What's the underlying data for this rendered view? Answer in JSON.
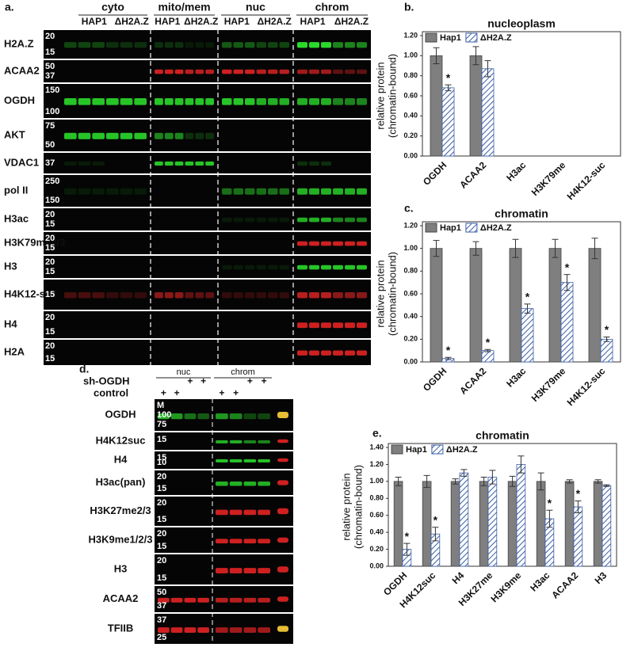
{
  "panel_a": {
    "label": "a.",
    "groups": [
      "cyto",
      "mito/mem",
      "nuc",
      "chrom"
    ],
    "lanes": [
      "HAP1",
      "ΔH2A.Z"
    ],
    "rows": [
      {
        "name": "H2A.Z",
        "markers": [
          "20",
          "15"
        ]
      },
      {
        "name": "ACAA2",
        "markers": [
          "50",
          "37"
        ]
      },
      {
        "name": "OGDH",
        "markers": [
          "150",
          "100"
        ]
      },
      {
        "name": "AKT",
        "markers": [
          "75",
          "50"
        ]
      },
      {
        "name": "VDAC1",
        "markers": [
          "37"
        ]
      },
      {
        "name": "pol II",
        "markers": [
          "250",
          "150"
        ]
      },
      {
        "name": "H3ac",
        "markers": [
          "20",
          "15"
        ]
      },
      {
        "name": "H3K79me2/3",
        "markers": [
          "20",
          "15"
        ]
      },
      {
        "name": "H3",
        "markers": [
          "20",
          "15"
        ]
      },
      {
        "name": "H4K12-suc",
        "markers": [
          "15"
        ]
      },
      {
        "name": "H4",
        "markers": [
          "20",
          "15"
        ]
      },
      {
        "name": "H2A",
        "markers": [
          "20",
          "15"
        ]
      }
    ]
  },
  "panel_d": {
    "label": "d.",
    "groups": [
      "nuc",
      "chrom"
    ],
    "conditions": [
      {
        "name": "sh-OGDH",
        "marks": [
          null,
          null,
          "+",
          "+"
        ]
      },
      {
        "name": "control",
        "marks": [
          "+",
          "+",
          null,
          null
        ]
      }
    ],
    "rows": [
      {
        "name": "OGDH",
        "markers": [
          "M",
          "100",
          "75"
        ]
      },
      {
        "name": "H4K12suc",
        "markers": [
          "15"
        ]
      },
      {
        "name": "H4",
        "markers": [
          "15",
          "10"
        ]
      },
      {
        "name": "H3ac(pan)",
        "markers": [
          "20",
          "15"
        ]
      },
      {
        "name": "H3K27me2/3",
        "markers": [
          "20",
          "15"
        ]
      },
      {
        "name": "H3K9me1/2/3",
        "markers": [
          "20",
          "15"
        ]
      },
      {
        "name": "H3",
        "markers": [
          "20",
          "15"
        ]
      },
      {
        "name": "ACAA2",
        "markers": [
          "50",
          "37"
        ]
      },
      {
        "name": "TFIIB",
        "markers": [
          "37",
          "25"
        ]
      }
    ]
  },
  "chart_data": [
    {
      "type": "bar",
      "panel_label": "b.",
      "title": "nucleoplasm",
      "y_label": [
        "relative protein",
        "(chromatin-bound)"
      ],
      "categories": [
        "OGDH",
        "ACAA2",
        "H3ac",
        "H3K79me",
        "H4K12-suc"
      ],
      "series": [
        {
          "name": "Hap1",
          "color": "#7f7f7f",
          "hatch": false,
          "values": [
            1.0,
            1.0,
            null,
            null,
            null
          ],
          "errors": [
            0.08,
            0.09,
            null,
            null,
            null
          ],
          "significance": [
            null,
            null,
            null,
            null,
            null
          ]
        },
        {
          "name": "ΔH2A.Z",
          "color": "#3a5ea8",
          "hatch": true,
          "values": [
            0.68,
            0.87,
            null,
            null,
            null
          ],
          "errors": [
            0.03,
            0.08,
            null,
            null,
            null
          ],
          "significance": [
            "*",
            null,
            null,
            null,
            null
          ]
        }
      ],
      "ylim": [
        0,
        1.2
      ],
      "yticks": [
        {
          "value": 0,
          "label": "0.00"
        },
        {
          "value": 0.2,
          "label": "0.20"
        },
        {
          "value": 0.4,
          "label": "0.40"
        },
        {
          "value": 0.6,
          "label": "0.60"
        },
        {
          "value": 0.8,
          "label": "0.80"
        },
        {
          "value": 1.0,
          "label": "1.00"
        },
        {
          "value": 1.2,
          "label": "1.20"
        }
      ],
      "grid": false,
      "legend": "top-left"
    },
    {
      "type": "bar",
      "panel_label": "c.",
      "title": "chromatin",
      "y_label": [
        "relative protein",
        "(chromatin-bound)"
      ],
      "categories": [
        "OGDH",
        "ACAA2",
        "H3ac",
        "H3K79me",
        "H4K12-suc"
      ],
      "series": [
        {
          "name": "Hap1",
          "color": "#7f7f7f",
          "hatch": false,
          "values": [
            1.0,
            1.0,
            1.0,
            1.0,
            1.0
          ],
          "errors": [
            0.07,
            0.06,
            0.08,
            0.08,
            0.09
          ],
          "significance": [
            null,
            null,
            null,
            null,
            null
          ]
        },
        {
          "name": "ΔH2A.Z",
          "color": "#3a5ea8",
          "hatch": true,
          "values": [
            0.03,
            0.1,
            0.47,
            0.7,
            0.2
          ],
          "errors": [
            0.01,
            0.01,
            0.04,
            0.07,
            0.02
          ],
          "significance": [
            "*",
            "*",
            "*",
            "*",
            "*"
          ]
        }
      ],
      "ylim": [
        0,
        1.2
      ],
      "yticks": [
        {
          "value": 0,
          "label": "0.00"
        },
        {
          "value": 0.2,
          "label": "0.20"
        },
        {
          "value": 0.4,
          "label": "0.40"
        },
        {
          "value": 0.6,
          "label": "0.60"
        },
        {
          "value": 0.8,
          "label": "0.80"
        },
        {
          "value": 1.0,
          "label": "1.00"
        },
        {
          "value": 1.2,
          "label": "1.20"
        }
      ],
      "grid": false,
      "legend": "top-left"
    },
    {
      "type": "bar",
      "panel_label": "e.",
      "title": "chromatin",
      "y_label": [
        "relative protein",
        "(chromatin-bound)"
      ],
      "categories": [
        "OGDH",
        "H4K12suc",
        "H4",
        "H3K27me",
        "H3K9me",
        "H3ac",
        "ACAA2",
        "H3"
      ],
      "series": [
        {
          "name": "Hap1",
          "color": "#7f7f7f",
          "hatch": false,
          "values": [
            1.0,
            1.0,
            1.0,
            1.0,
            1.0,
            1.0,
            1.0,
            1.0
          ],
          "errors": [
            0.05,
            0.07,
            0.03,
            0.05,
            0.06,
            0.1,
            0.02,
            0.02
          ],
          "significance": [
            null,
            null,
            null,
            null,
            null,
            null,
            null,
            null
          ]
        },
        {
          "name": "ΔH2A.Z",
          "color": "#3a5ea8",
          "hatch": true,
          "values": [
            0.2,
            0.38,
            1.1,
            1.05,
            1.2,
            0.56,
            0.7,
            0.95
          ],
          "errors": [
            0.07,
            0.08,
            0.04,
            0.08,
            0.1,
            0.1,
            0.07,
            0.01
          ],
          "significance": [
            "*",
            "*",
            null,
            null,
            null,
            "*",
            "*",
            null
          ]
        }
      ],
      "ylim": [
        0,
        1.4
      ],
      "yticks": [
        {
          "value": 0,
          "label": "0.00"
        },
        {
          "value": 0.2,
          "label": "0.20"
        },
        {
          "value": 0.4,
          "label": "0.40"
        },
        {
          "value": 0.6,
          "label": "0.60"
        },
        {
          "value": 0.8,
          "label": "0.80"
        },
        {
          "value": 1.0,
          "label": "1.00"
        },
        {
          "value": 1.2,
          "label": "1.20"
        },
        {
          "value": 1.4,
          "label": "1.40"
        }
      ],
      "grid": false,
      "legend": "top-left"
    }
  ]
}
